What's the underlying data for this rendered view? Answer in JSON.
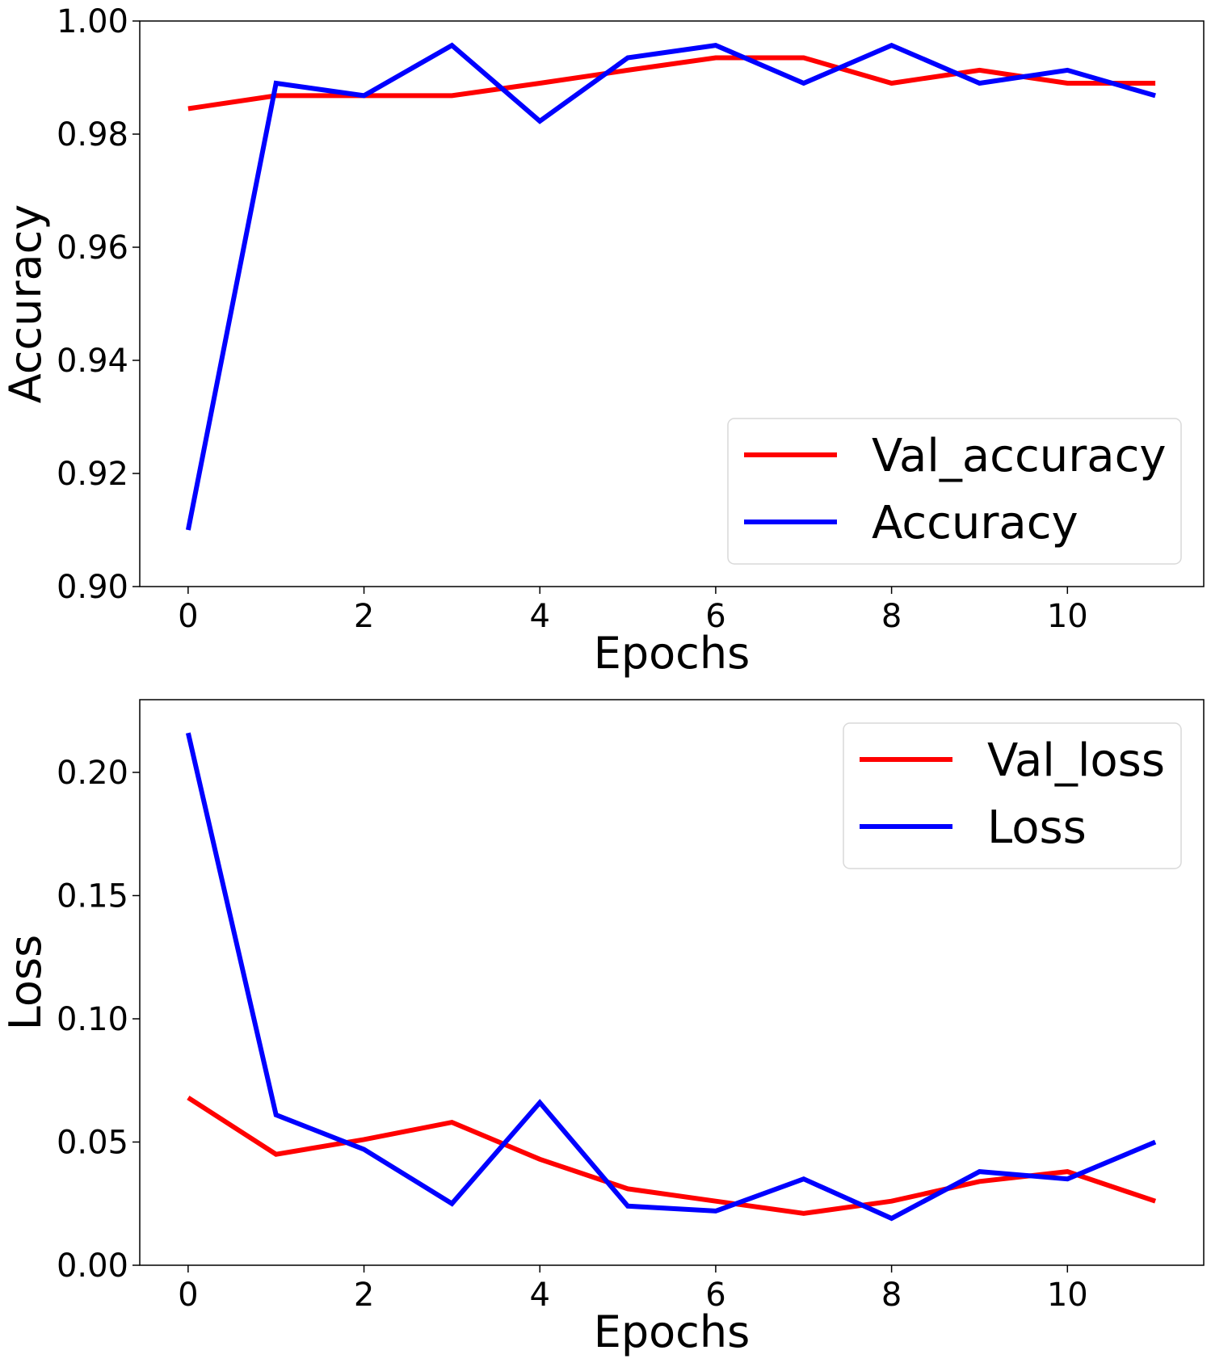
{
  "chart_data": [
    {
      "type": "line",
      "title": "",
      "xlabel": "Epochs",
      "ylabel": "Accuracy",
      "xlim": [
        -0.55,
        11.55
      ],
      "ylim": [
        0.9,
        1.0
      ],
      "xticks": [
        0,
        2,
        4,
        6,
        8,
        10
      ],
      "xtick_labels": [
        "0",
        "2",
        "4",
        "6",
        "8",
        "10"
      ],
      "yticks": [
        0.9,
        0.92,
        0.94,
        0.96,
        0.98,
        1.0
      ],
      "ytick_labels": [
        "0.90",
        "0.92",
        "0.94",
        "0.96",
        "0.98",
        "1.00"
      ],
      "grid": false,
      "legend_position": "lower-right",
      "x": [
        0,
        1,
        2,
        3,
        4,
        5,
        6,
        7,
        8,
        9,
        10,
        11
      ],
      "series": [
        {
          "name": "Val_accuracy",
          "color": "#ff0000",
          "values": [
            0.9845,
            0.9868,
            0.9868,
            0.9868,
            0.989,
            0.9913,
            0.9935,
            0.9935,
            0.989,
            0.9913,
            0.989,
            0.989
          ]
        },
        {
          "name": "Accuracy",
          "color": "#0000ff",
          "values": [
            0.91,
            0.989,
            0.9868,
            0.9957,
            0.9823,
            0.9935,
            0.9957,
            0.989,
            0.9957,
            0.989,
            0.9913,
            0.9868
          ]
        }
      ]
    },
    {
      "type": "line",
      "title": "",
      "xlabel": "Epochs",
      "ylabel": "Loss",
      "xlim": [
        -0.55,
        11.55
      ],
      "ylim": [
        0.0,
        0.2295
      ],
      "xticks": [
        0,
        2,
        4,
        6,
        8,
        10
      ],
      "xtick_labels": [
        "0",
        "2",
        "4",
        "6",
        "8",
        "10"
      ],
      "yticks": [
        0.0,
        0.05,
        0.1,
        0.15,
        0.2
      ],
      "ytick_labels": [
        "0.00",
        "0.05",
        "0.10",
        "0.15",
        "0.20"
      ],
      "grid": false,
      "legend_position": "upper-right",
      "x": [
        0,
        1,
        2,
        3,
        4,
        5,
        6,
        7,
        8,
        9,
        10,
        11
      ],
      "series": [
        {
          "name": "Val_loss",
          "color": "#ff0000",
          "values": [
            0.068,
            0.045,
            0.051,
            0.058,
            0.043,
            0.031,
            0.026,
            0.021,
            0.026,
            0.034,
            0.038,
            0.026
          ]
        },
        {
          "name": "Loss",
          "color": "#0000ff",
          "values": [
            0.216,
            0.061,
            0.047,
            0.025,
            0.066,
            0.024,
            0.022,
            0.035,
            0.019,
            0.038,
            0.035,
            0.05
          ]
        }
      ]
    }
  ]
}
